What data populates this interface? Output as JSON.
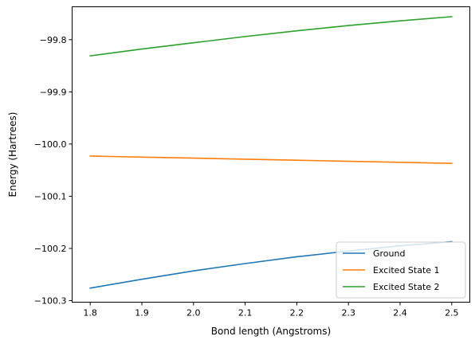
{
  "chart_data": {
    "type": "line",
    "title": "",
    "xlabel": "Bond length (Angstroms)",
    "ylabel": "Energy (Hartrees)",
    "xlim": [
      1.765,
      2.535
    ],
    "ylim": [
      -100.303,
      -99.737
    ],
    "xticks": [
      1.8,
      1.9,
      2.0,
      2.1,
      2.2,
      2.3,
      2.4,
      2.5
    ],
    "xtick_labels": [
      "1.8",
      "1.9",
      "2.0",
      "2.1",
      "2.2",
      "2.3",
      "2.4",
      "2.5"
    ],
    "yticks": [
      -100.3,
      -100.2,
      -100.1,
      -100.0,
      -99.9,
      -99.8
    ],
    "ytick_labels": [
      "−100.3",
      "−100.2",
      "−100.1",
      "−100.0",
      "−99.9",
      "−99.8"
    ],
    "grid": false,
    "legend_position": "lower-right",
    "x": [
      1.8,
      1.9,
      2.0,
      2.1,
      2.2,
      2.3,
      2.4,
      2.5
    ],
    "series": [
      {
        "name": "Ground",
        "color": "#1f77b4",
        "values": [
          -100.276,
          -100.259,
          -100.243,
          -100.229,
          -100.216,
          -100.205,
          -100.195,
          -100.187
        ]
      },
      {
        "name": "Excited State 1",
        "color": "#ff7f0e",
        "values": [
          -100.023,
          -100.025,
          -100.027,
          -100.029,
          -100.031,
          -100.033,
          -100.035,
          -100.037
        ]
      },
      {
        "name": "Excited State 2",
        "color": "#2ca02c",
        "values": [
          -99.831,
          -99.818,
          -99.806,
          -99.794,
          -99.783,
          -99.773,
          -99.764,
          -99.756
        ]
      }
    ]
  }
}
